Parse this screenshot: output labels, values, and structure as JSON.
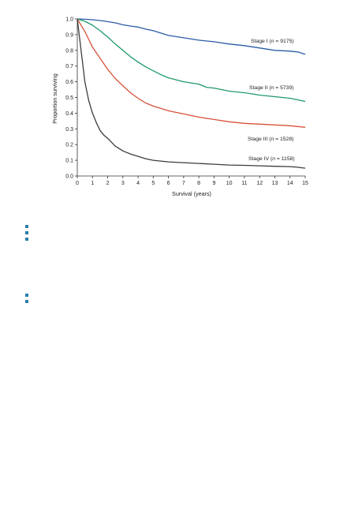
{
  "chart_data": {
    "type": "line",
    "title": "",
    "xlabel": "Survival (years)",
    "ylabel": "Proportion surviving",
    "xlim": [
      0,
      15
    ],
    "ylim": [
      0,
      1.0
    ],
    "x_ticks": [
      "0",
      "1",
      "2",
      "3",
      "4",
      "5",
      "6",
      "7",
      "8",
      "9",
      "10",
      "11",
      "12",
      "13",
      "14",
      "15"
    ],
    "y_ticks": [
      "0.0",
      "0.1",
      "0.2",
      "0.3",
      "0.4",
      "0.5",
      "0.6",
      "0.7",
      "0.8",
      "0.9",
      "1.0"
    ],
    "grid": false,
    "legend": "inline labels at line ends",
    "series": [
      {
        "name": "Stage I (n = 9175)",
        "label_prefix": "Stage I (",
        "label_n": "n",
        "label_suffix": " = 9175)",
        "color": "#2a5ca8",
        "x": [
          0,
          0.5,
          1,
          1.5,
          2,
          2.5,
          3,
          3.5,
          4,
          4.5,
          5,
          5.5,
          6,
          7,
          8,
          9,
          10,
          11,
          12,
          13,
          14,
          14.5,
          15
        ],
        "y": [
          1.0,
          0.998,
          0.995,
          0.99,
          0.983,
          0.975,
          0.963,
          0.955,
          0.948,
          0.935,
          0.925,
          0.91,
          0.895,
          0.88,
          0.865,
          0.855,
          0.84,
          0.83,
          0.815,
          0.8,
          0.795,
          0.79,
          0.775
        ]
      },
      {
        "name": "Stage II (n = 5739)",
        "label_prefix": "Stage II (",
        "label_n": "n",
        "label_suffix": " = 5739)",
        "color": "#1f9a68",
        "x": [
          0,
          0.5,
          1,
          1.5,
          2,
          2.5,
          3,
          3.5,
          4,
          4.5,
          5,
          5.5,
          6,
          7,
          8,
          8.5,
          9,
          10,
          11,
          12,
          13,
          13.5,
          14,
          14.5,
          15
        ],
        "y": [
          1.0,
          0.985,
          0.96,
          0.925,
          0.885,
          0.84,
          0.8,
          0.76,
          0.725,
          0.695,
          0.67,
          0.645,
          0.625,
          0.6,
          0.585,
          0.565,
          0.56,
          0.54,
          0.53,
          0.515,
          0.505,
          0.5,
          0.495,
          0.485,
          0.475
        ]
      },
      {
        "name": "Stage III (n = 1528)",
        "label_prefix": "Stage III (",
        "label_n": "n",
        "label_suffix": " = 1528)",
        "color": "#d8523a",
        "x": [
          0,
          0.5,
          1,
          1.5,
          2,
          2.5,
          3,
          3.5,
          4,
          4.5,
          5,
          5.5,
          6,
          7,
          8,
          9,
          10,
          11,
          12,
          13,
          14,
          14.5,
          15
        ],
        "y": [
          1.0,
          0.92,
          0.82,
          0.75,
          0.68,
          0.62,
          0.575,
          0.53,
          0.495,
          0.465,
          0.445,
          0.43,
          0.415,
          0.395,
          0.375,
          0.36,
          0.345,
          0.335,
          0.33,
          0.325,
          0.32,
          0.315,
          0.31
        ]
      },
      {
        "name": "Stage IV (n = 1158)",
        "label_prefix": "Stage IV (",
        "label_n": "n",
        "label_suffix": " = 1158)",
        "color": "#3c3c3c",
        "x": [
          0,
          0.25,
          0.5,
          0.75,
          1,
          1.25,
          1.5,
          1.75,
          2,
          2.5,
          3,
          3.5,
          4,
          4.5,
          5,
          5.5,
          6,
          7,
          8,
          9,
          10,
          11,
          12,
          13,
          14,
          14.5,
          15
        ],
        "y": [
          1.0,
          0.8,
          0.6,
          0.48,
          0.4,
          0.34,
          0.29,
          0.26,
          0.24,
          0.19,
          0.16,
          0.14,
          0.125,
          0.11,
          0.1,
          0.095,
          0.09,
          0.085,
          0.08,
          0.075,
          0.07,
          0.068,
          0.065,
          0.062,
          0.06,
          0.056,
          0.05
        ]
      }
    ]
  },
  "bullets": {
    "color": "#2b7fa8",
    "group1_count": 3,
    "group2_count": 2
  }
}
